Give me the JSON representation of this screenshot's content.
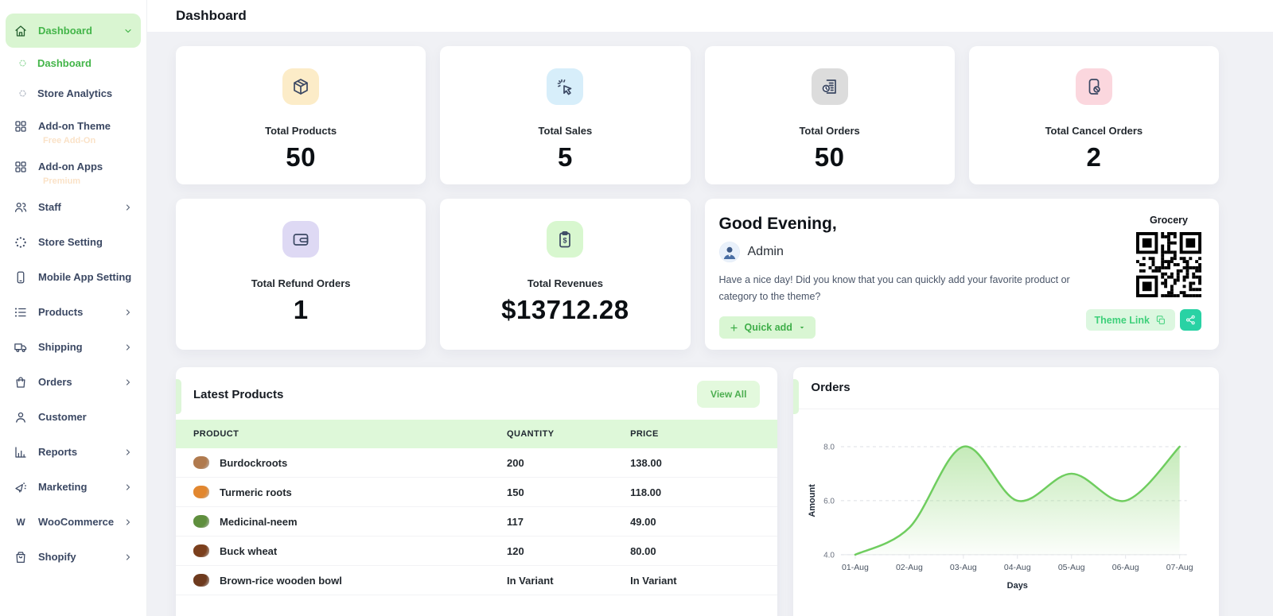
{
  "page": {
    "title": "Dashboard"
  },
  "sidebar": {
    "items": [
      {
        "label": "Dashboard",
        "icon": "home-icon",
        "variant": "pill",
        "chevron": "down",
        "active": true
      },
      {
        "label": "Dashboard",
        "icon": "circle-bullet-icon",
        "variant": "sub",
        "active": true
      },
      {
        "label": "Store Analytics",
        "icon": "circle-bullet-icon",
        "variant": "sub"
      },
      {
        "label": "Add-on Theme",
        "icon": "grid-icon",
        "badge": "Free Add-On"
      },
      {
        "label": "Add-on Apps",
        "icon": "grid-icon",
        "badge": "Premium"
      },
      {
        "label": "Staff",
        "icon": "users-icon",
        "chevron": "right"
      },
      {
        "label": "Store Setting",
        "icon": "spinner-icon"
      },
      {
        "label": "Mobile App Setting",
        "icon": "mobile-icon"
      },
      {
        "label": "Products",
        "icon": "list-icon",
        "chevron": "right"
      },
      {
        "label": "Shipping",
        "icon": "truck-icon",
        "chevron": "right"
      },
      {
        "label": "Orders",
        "icon": "shopping-bag-icon",
        "chevron": "right"
      },
      {
        "label": "Customer",
        "icon": "user-icon",
        "chevron": null
      },
      {
        "label": "Reports",
        "icon": "bar-chart-icon",
        "chevron": "right"
      },
      {
        "label": "Marketing",
        "icon": "megaphone-icon",
        "chevron": "right"
      },
      {
        "label": "WooCommerce",
        "icon": "woocommerce-icon",
        "chevron": "right"
      },
      {
        "label": "Shopify",
        "icon": "shopify-icon",
        "chevron": "right"
      }
    ]
  },
  "stats": {
    "cards": [
      {
        "label": "Total Products",
        "value": "50",
        "icon": "package-icon",
        "icon_bg": "#fcecc8",
        "icon_color": "#efa62f"
      },
      {
        "label": "Total Sales",
        "value": "5",
        "icon": "cursor-click-icon",
        "icon_bg": "#d7eefa",
        "icon_color": "#23292f"
      },
      {
        "label": "Total Orders",
        "value": "50",
        "icon": "order-document-icon",
        "icon_bg": "#dcdcdc",
        "icon_color": "#2c3440"
      },
      {
        "label": "Total Cancel Orders",
        "value": "2",
        "icon": "cancel-order-icon",
        "icon_bg": "#fbd7de",
        "icon_color": "#f0506e"
      },
      {
        "label": "Total Refund Orders",
        "value": "1",
        "icon": "wallet-icon",
        "icon_bg": "#ded9f4",
        "icon_color": "#7b68d9"
      },
      {
        "label": "Total Revenues",
        "value": "$13712.28",
        "icon": "invoice-icon",
        "icon_bg": "#d8f7cf",
        "icon_color": "#46c24e"
      }
    ]
  },
  "greeting": {
    "title": "Good Evening,",
    "user": "Admin",
    "message": "Have a nice day! Did you know that you can quickly add your favorite product or category to the theme?",
    "quick_add_label": "Quick add",
    "qr_title": "Grocery",
    "theme_link_label": "Theme Link"
  },
  "latest_products": {
    "title": "Latest Products",
    "view_all_label": "View All",
    "columns": [
      "PRODUCT",
      "QUANTITY",
      "PRICE"
    ],
    "rows": [
      {
        "product": "Burdockroots",
        "quantity": "200",
        "price": "138.00",
        "thumb_color": "#b07a4e"
      },
      {
        "product": "Turmeric roots",
        "quantity": "150",
        "price": "118.00",
        "thumb_color": "#e2872f"
      },
      {
        "product": "Medicinal-neem",
        "quantity": "117",
        "price": "49.00",
        "thumb_color": "#5f8f3e"
      },
      {
        "product": "Buck wheat",
        "quantity": "120",
        "price": "80.00",
        "thumb_color": "#7b3f1d"
      },
      {
        "product": "Brown-rice wooden bowl",
        "quantity": "In Variant",
        "price": "In Variant",
        "thumb_color": "#6e3a1e"
      }
    ]
  },
  "chart_data": {
    "type": "area",
    "title": "Orders",
    "x": [
      "01-Aug",
      "02-Aug",
      "03-Aug",
      "04-Aug",
      "05-Aug",
      "06-Aug",
      "07-Aug"
    ],
    "series": [
      {
        "name": "Orders",
        "values": [
          4,
          5,
          8,
          6,
          7,
          6,
          8
        ]
      }
    ],
    "xlabel": "Days",
    "ylabel": "Amount",
    "ylim": [
      4,
      8
    ],
    "yticks": [
      8,
      6,
      4
    ],
    "ytick_labels": [
      "8.0",
      "6.0",
      "4.0"
    ],
    "grid": "horizontal-dashed",
    "legend": false,
    "line_color": "#6fcd5f",
    "fill_top": "rgba(139,214,115,0.50)",
    "fill_bottom": "rgba(139,214,115,0.03)"
  }
}
